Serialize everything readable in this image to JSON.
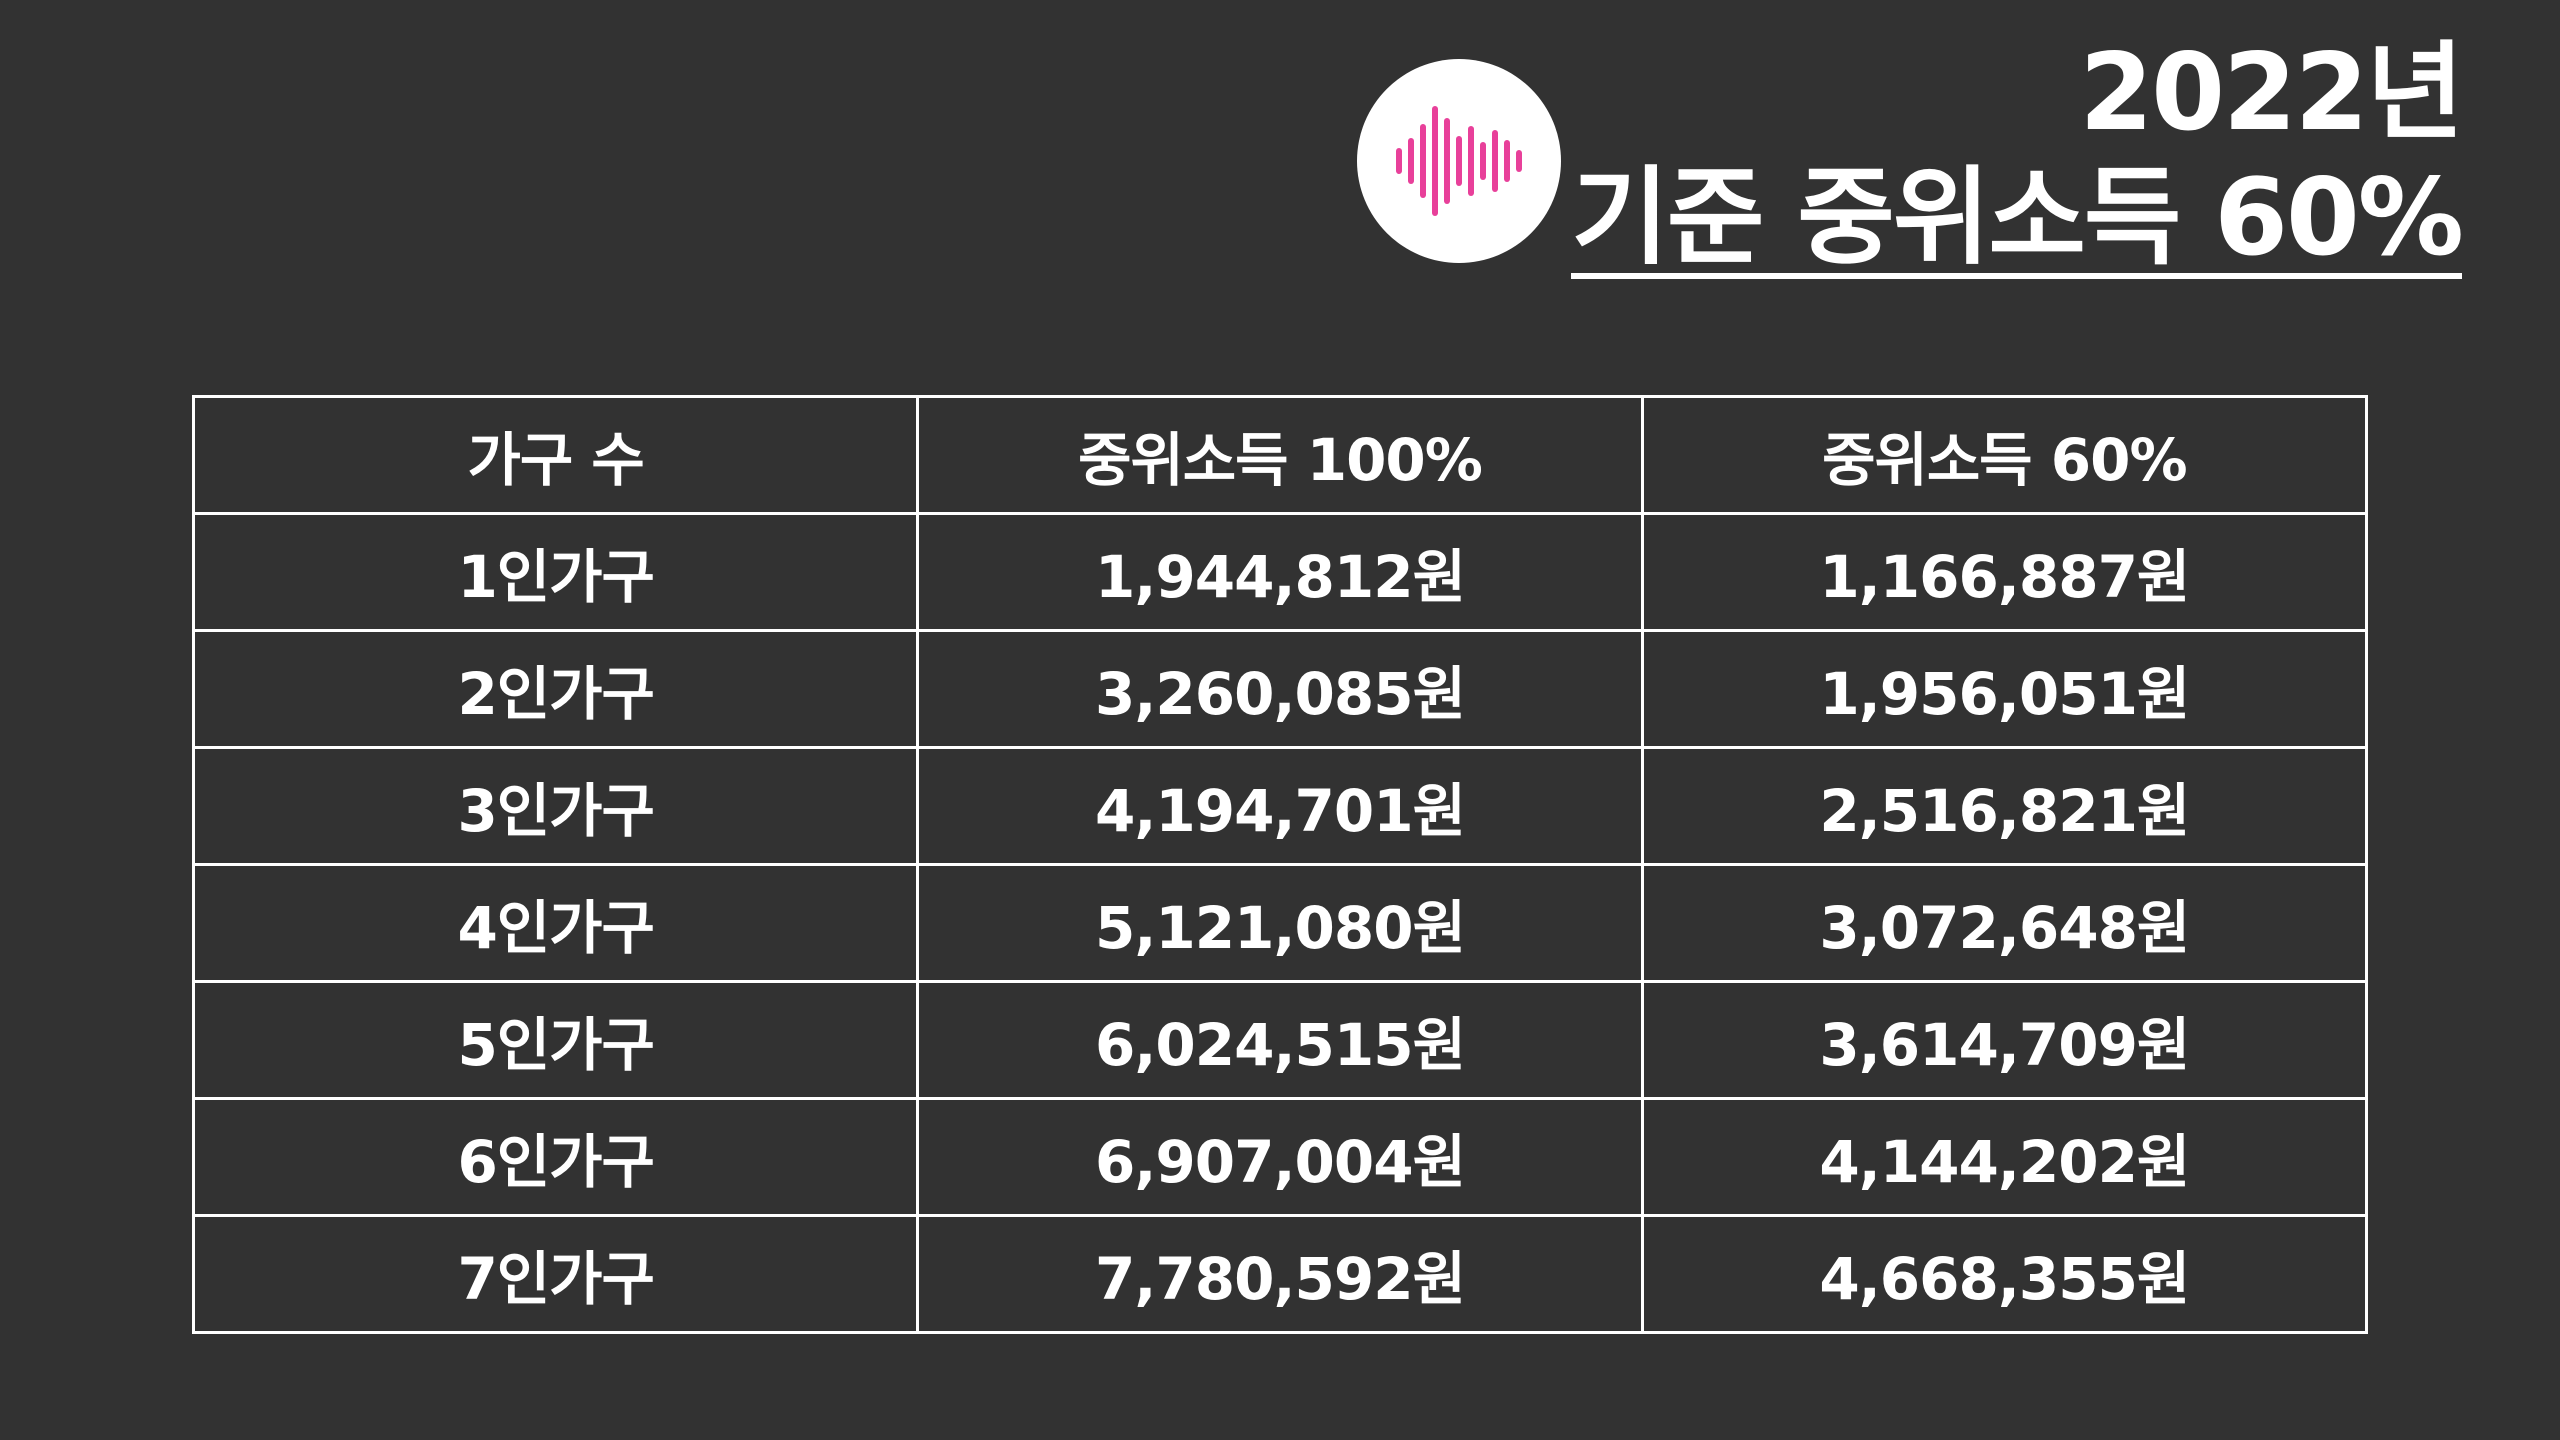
{
  "logo": {
    "icon": "sound-wave-icon",
    "accent_color": "#E8409A",
    "background": "#FFFFFF"
  },
  "title": {
    "line1": "2022년",
    "line2": "기준 중위소득 60%"
  },
  "table": {
    "headers": [
      "가구 수",
      "중위소득 100%",
      "중위소득 60%"
    ],
    "rows": [
      [
        "1인가구",
        "1,944,812원",
        "1,166,887원"
      ],
      [
        "2인가구",
        "3,260,085원",
        "1,956,051원"
      ],
      [
        "3인가구",
        "4,194,701원",
        "2,516,821원"
      ],
      [
        "4인가구",
        "5,121,080원",
        "3,072,648원"
      ],
      [
        "5인가구",
        "6,024,515원",
        "3,614,709원"
      ],
      [
        "6인가구",
        "6,907,004원",
        "4,144,202원"
      ],
      [
        "7인가구",
        "7,780,592원",
        "4,668,355원"
      ]
    ]
  }
}
